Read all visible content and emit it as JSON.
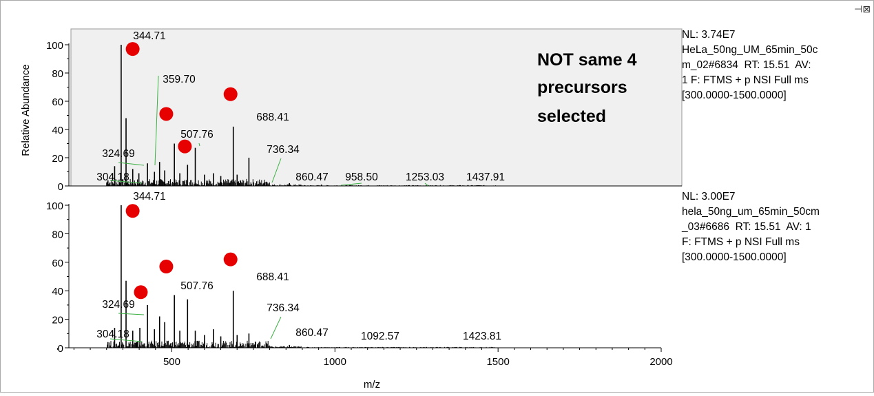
{
  "window": {
    "pin_icon": "pin-icon"
  },
  "axis_labels": {
    "y": "Relative Abundance",
    "x": "m/z"
  },
  "overlay": {
    "lines": [
      "NOT same 4",
      "precursors",
      "selected"
    ],
    "marker_color": "#e60000",
    "highlight_bg": "#f0f0f0"
  },
  "spectra": [
    {
      "info_lines": [
        "NL: 3.74E7",
        "HeLa_50ng_UM_65min_50c",
        "m_02#6834  RT: 15.51  AV:",
        "1 F: FTMS + p NSI Full ms",
        "[300.0000-1500.0000]"
      ]
    },
    {
      "info_lines": [
        "NL: 3.00E7",
        "hela_50ng_um_65min_50cm",
        "_03#6686  RT: 15.51  AV: 1",
        "F: FTMS + p NSI Full ms",
        "[300.0000-1500.0000]"
      ]
    }
  ],
  "chart_data": [
    {
      "type": "line",
      "title": "",
      "xlabel": "m/z",
      "ylabel": "Relative Abundance",
      "xlim": [
        100,
        2000
      ],
      "ylim": [
        0,
        100
      ],
      "yticks": [
        0,
        20,
        40,
        60,
        80,
        100
      ],
      "peaks": [
        {
          "mz": 304.18,
          "rel": 4
        },
        {
          "mz": 324.69,
          "rel": 14
        },
        {
          "mz": 344.71,
          "rel": 100
        },
        {
          "mz": 359.7,
          "rel": 48
        },
        {
          "mz": 380.2,
          "rel": 12
        },
        {
          "mz": 399.0,
          "rel": 9
        },
        {
          "mz": 425.3,
          "rel": 16
        },
        {
          "mz": 446.8,
          "rel": 10
        },
        {
          "mz": 462.5,
          "rel": 17
        },
        {
          "mz": 478.2,
          "rel": 11
        },
        {
          "mz": 507.76,
          "rel": 30
        },
        {
          "mz": 524.5,
          "rel": 9
        },
        {
          "mz": 548.2,
          "rel": 15
        },
        {
          "mz": 571.9,
          "rel": 27
        },
        {
          "mz": 600.3,
          "rel": 8
        },
        {
          "mz": 627.5,
          "rel": 9
        },
        {
          "mz": 650.1,
          "rel": 7
        },
        {
          "mz": 688.41,
          "rel": 42
        },
        {
          "mz": 700.2,
          "rel": 8
        },
        {
          "mz": 736.34,
          "rel": 20
        },
        {
          "mz": 790.0,
          "rel": 3
        },
        {
          "mz": 860.47,
          "rel": 2
        },
        {
          "mz": 958.5,
          "rel": 1
        },
        {
          "mz": 1253.03,
          "rel": 0.5
        },
        {
          "mz": 1437.91,
          "rel": 0.5
        }
      ],
      "peak_labels": [
        "344.71",
        "359.70",
        "324.69",
        "507.76",
        "688.41",
        "736.34",
        "304.18",
        "860.47",
        "958.50",
        "1253.03",
        "1437.91"
      ],
      "markers_mz_rel": [
        [
          380,
          97
        ],
        [
          483,
          51
        ],
        [
          540,
          28
        ],
        [
          680,
          65
        ]
      ]
    },
    {
      "type": "line",
      "title": "",
      "xlabel": "m/z",
      "ylabel": "",
      "xlim": [
        100,
        2000
      ],
      "ylim": [
        0,
        100
      ],
      "yticks": [
        0,
        20,
        40,
        60,
        80,
        100
      ],
      "xticks": [
        500,
        1000,
        1500,
        2000
      ],
      "peaks": [
        {
          "mz": 304.18,
          "rel": 4
        },
        {
          "mz": 324.69,
          "rel": 14
        },
        {
          "mz": 344.71,
          "rel": 100
        },
        {
          "mz": 359.7,
          "rel": 47
        },
        {
          "mz": 380.2,
          "rel": 12
        },
        {
          "mz": 402.0,
          "rel": 14
        },
        {
          "mz": 425.3,
          "rel": 30
        },
        {
          "mz": 446.8,
          "rel": 13
        },
        {
          "mz": 462.5,
          "rel": 22
        },
        {
          "mz": 478.2,
          "rel": 18
        },
        {
          "mz": 507.76,
          "rel": 37
        },
        {
          "mz": 524.5,
          "rel": 12
        },
        {
          "mz": 548.2,
          "rel": 34
        },
        {
          "mz": 571.9,
          "rel": 12
        },
        {
          "mz": 600.3,
          "rel": 9
        },
        {
          "mz": 627.5,
          "rel": 13
        },
        {
          "mz": 650.1,
          "rel": 8
        },
        {
          "mz": 688.41,
          "rel": 40
        },
        {
          "mz": 700.2,
          "rel": 9
        },
        {
          "mz": 736.34,
          "rel": 10
        },
        {
          "mz": 790.0,
          "rel": 3
        },
        {
          "mz": 860.47,
          "rel": 2
        },
        {
          "mz": 1092.57,
          "rel": 0.5
        },
        {
          "mz": 1423.81,
          "rel": 0.5
        }
      ],
      "peak_labels": [
        "344.71",
        "324.69",
        "507.76",
        "688.41",
        "736.34",
        "304.18",
        "860.47",
        "1092.57",
        "1423.81"
      ],
      "markers_mz_rel": [
        [
          380,
          96
        ],
        [
          405,
          39
        ],
        [
          483,
          57
        ],
        [
          680,
          62
        ]
      ]
    }
  ]
}
